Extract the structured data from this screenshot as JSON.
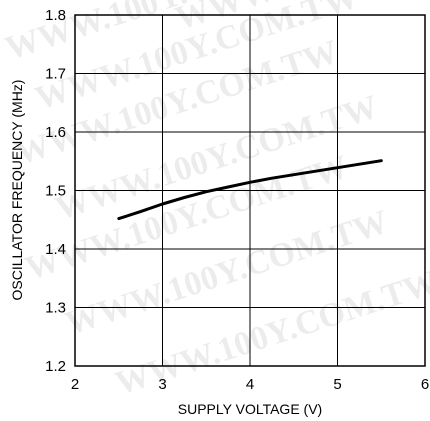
{
  "chart_data": {
    "type": "line",
    "title": "",
    "xlabel": "SUPPLY VOLTAGE (V)",
    "ylabel": "OSCILLATOR FREQUENCY (MHz)",
    "xlim": [
      2,
      6
    ],
    "ylim": [
      1.2,
      1.8
    ],
    "xticks": [
      "2",
      "3",
      "4",
      "5",
      "6"
    ],
    "yticks": [
      "1.2",
      "1.3",
      "1.4",
      "1.5",
      "1.6",
      "1.7",
      "1.8"
    ],
    "grid": true,
    "series": [
      {
        "x": [
          2.5,
          2.75,
          3.0,
          3.25,
          3.5,
          3.75,
          4.0,
          4.25,
          4.5,
          4.75,
          5.0,
          5.25,
          5.5
        ],
        "values": [
          1.452,
          1.464,
          1.477,
          1.488,
          1.498,
          1.506,
          1.514,
          1.521,
          1.527,
          1.533,
          1.539,
          1.545,
          1.551
        ]
      }
    ],
    "watermark": "WWW.100Y.COM.TW"
  }
}
